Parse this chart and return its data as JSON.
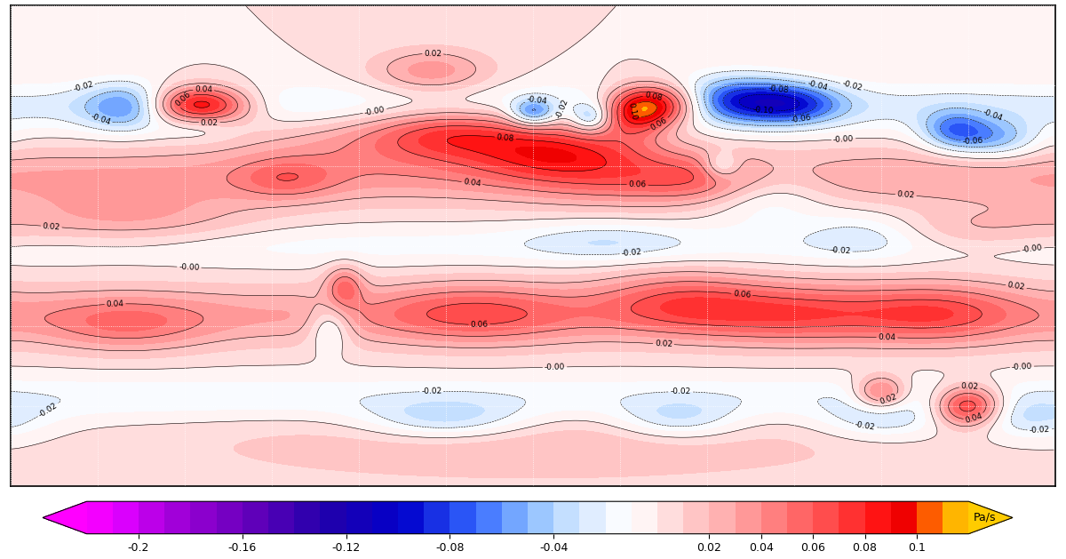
{
  "figsize": [
    12.0,
    6.29
  ],
  "dpi": 100,
  "vmin": -0.22,
  "vmax": 0.12,
  "colorbar_ticks": [
    -0.2,
    -0.16,
    -0.12,
    -0.08,
    -0.04,
    0.02,
    0.04,
    0.06,
    0.08,
    0.1
  ],
  "colorbar_tick_labels": [
    "-0.2",
    "-0.16",
    "-0.12",
    "-0.08",
    "-0.04",
    "0.02",
    "0.04",
    "0.06",
    "0.08",
    "0.1"
  ],
  "colorbar_label": "Pa/s",
  "cmap_nodes": [
    [
      0.0,
      "#ff00ff"
    ],
    [
      0.04,
      "#dd00ff"
    ],
    [
      0.09,
      "#aa00dd"
    ],
    [
      0.18,
      "#6600bb"
    ],
    [
      0.27,
      "#2200aa"
    ],
    [
      0.36,
      "#0000cc"
    ],
    [
      0.44,
      "#3366ff"
    ],
    [
      0.5,
      "#88bbff"
    ],
    [
      0.55,
      "#cce4ff"
    ],
    [
      0.59,
      "#eef4ff"
    ],
    [
      0.61,
      "#ffffff"
    ],
    [
      0.64,
      "#fff0f0"
    ],
    [
      0.68,
      "#ffcccc"
    ],
    [
      0.73,
      "#ffaaaa"
    ],
    [
      0.79,
      "#ff7777"
    ],
    [
      0.85,
      "#ff4444"
    ],
    [
      0.9,
      "#ff1111"
    ],
    [
      0.93,
      "#ee0000"
    ],
    [
      0.96,
      "#ff6600"
    ],
    [
      0.98,
      "#ffaa00"
    ],
    [
      1.0,
      "#ffcc00"
    ]
  ]
}
